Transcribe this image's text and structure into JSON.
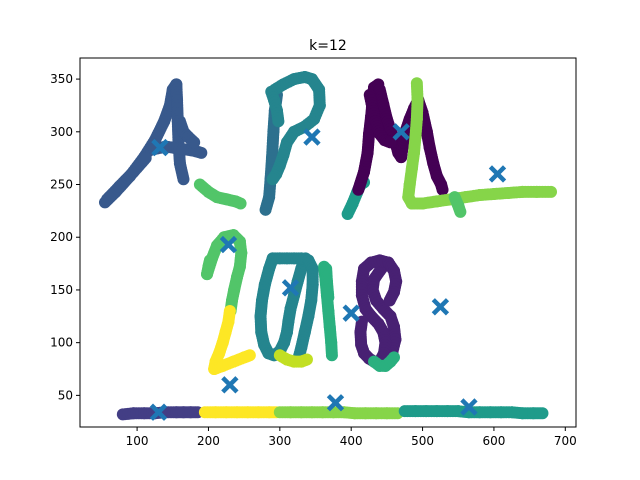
{
  "chart_data": {
    "type": "scatter",
    "title": "k=12",
    "xlabel": "",
    "ylabel": "",
    "xlim": [
      20,
      715
    ],
    "ylim": [
      20,
      370
    ],
    "xticks": [
      100,
      200,
      300,
      400,
      500,
      600,
      700
    ],
    "yticks": [
      50,
      100,
      150,
      200,
      250,
      300,
      350
    ],
    "grid": false,
    "legend": "none",
    "colors": {
      "c0": "#440154",
      "c1": "#482173",
      "c2": "#433e85",
      "c3": "#38598c",
      "c4": "#2d708e",
      "c5": "#25858e",
      "c6": "#1e9b8a",
      "c7": "#2ab07f",
      "c8": "#52c569",
      "c9": "#86d549",
      "c10": "#c2df23",
      "c11": "#fde725",
      "centroid": "#1f77b4"
    },
    "centroids": [
      [
        132,
        285
      ],
      [
        345,
        295
      ],
      [
        470,
        300
      ],
      [
        605,
        260
      ],
      [
        228,
        193
      ],
      [
        315,
        152
      ],
      [
        400,
        128
      ],
      [
        525,
        134
      ],
      [
        230,
        60
      ],
      [
        130,
        34
      ],
      [
        378,
        43
      ],
      [
        565,
        39
      ]
    ],
    "strokes": [
      {
        "color": "c3",
        "points": [
          [
            55,
            233
          ],
          [
            70,
            243
          ],
          [
            90,
            258
          ],
          [
            110,
            276
          ],
          [
            125,
            292
          ],
          [
            138,
            310
          ],
          [
            146,
            325
          ],
          [
            150,
            340
          ],
          [
            155,
            345
          ]
        ]
      },
      {
        "color": "c3",
        "points": [
          [
            155,
            345
          ],
          [
            156,
            330
          ],
          [
            157,
            310
          ],
          [
            158,
            290
          ],
          [
            160,
            270
          ],
          [
            165,
            255
          ]
        ]
      },
      {
        "color": "c3",
        "points": [
          [
            120,
            283
          ],
          [
            140,
            286
          ],
          [
            160,
            284
          ],
          [
            180,
            282
          ],
          [
            190,
            280
          ]
        ]
      },
      {
        "color": "c3",
        "points": [
          [
            160,
            310
          ],
          [
            165,
            300
          ],
          [
            172,
            295
          ],
          [
            180,
            290
          ]
        ]
      },
      {
        "color": "c3",
        "points": [
          [
            58,
            236
          ],
          [
            75,
            248
          ],
          [
            95,
            262
          ],
          [
            112,
            275
          ]
        ]
      },
      {
        "color": "c8",
        "points": [
          [
            188,
            250
          ],
          [
            200,
            243
          ],
          [
            212,
            238
          ],
          [
            225,
            236
          ],
          [
            238,
            234
          ],
          [
            245,
            232
          ]
        ]
      },
      {
        "color": "c4",
        "points": [
          [
            280,
            226
          ],
          [
            285,
            238
          ],
          [
            287,
            255
          ],
          [
            289,
            275
          ],
          [
            291,
            300
          ],
          [
            293,
            320
          ],
          [
            296,
            335
          ]
        ]
      },
      {
        "color": "c5",
        "points": [
          [
            293,
            340
          ],
          [
            305,
            345
          ],
          [
            320,
            350
          ],
          [
            335,
            352
          ],
          [
            345,
            350
          ],
          [
            355,
            340
          ],
          [
            356,
            325
          ],
          [
            348,
            312
          ],
          [
            335,
            305
          ],
          [
            320,
            300
          ],
          [
            310,
            290
          ],
          [
            305,
            278
          ],
          [
            300,
            268
          ],
          [
            295,
            260
          ],
          [
            290,
            255
          ]
        ]
      },
      {
        "color": "c5",
        "points": [
          [
            288,
            338
          ],
          [
            292,
            330
          ],
          [
            296,
            320
          ],
          [
            298,
            310
          ]
        ]
      },
      {
        "color": "c6",
        "points": [
          [
            395,
            222
          ],
          [
            402,
            232
          ],
          [
            408,
            242
          ],
          [
            413,
            250
          ],
          [
            418,
            252
          ]
        ]
      },
      {
        "color": "c0",
        "points": [
          [
            410,
            245
          ],
          [
            418,
            262
          ],
          [
            423,
            280
          ],
          [
            425,
            298
          ],
          [
            428,
            315
          ],
          [
            430,
            330
          ],
          [
            432,
            342
          ],
          [
            438,
            345
          ]
        ]
      },
      {
        "color": "c0",
        "points": [
          [
            440,
            340
          ],
          [
            445,
            326
          ],
          [
            450,
            312
          ],
          [
            456,
            300
          ],
          [
            462,
            290
          ],
          [
            466,
            280
          ],
          [
            470,
            276
          ],
          [
            473,
            290
          ],
          [
            476,
            300
          ]
        ]
      },
      {
        "color": "c0",
        "points": [
          [
            476,
            300
          ],
          [
            482,
            312
          ],
          [
            488,
            322
          ],
          [
            494,
            330
          ],
          [
            500,
            318
          ],
          [
            506,
            300
          ],
          [
            510,
            285
          ],
          [
            515,
            270
          ],
          [
            520,
            258
          ],
          [
            526,
            250
          ],
          [
            528,
            245
          ]
        ]
      },
      {
        "color": "c0",
        "points": [
          [
            426,
            335
          ],
          [
            430,
            322
          ],
          [
            434,
            310
          ],
          [
            440,
            298
          ],
          [
            447,
            292
          ],
          [
            455,
            290
          ]
        ]
      },
      {
        "color": "c9",
        "points": [
          [
            492,
            346
          ],
          [
            493,
            330
          ],
          [
            492,
            312
          ],
          [
            490,
            295
          ],
          [
            488,
            280
          ],
          [
            485,
            265
          ],
          [
            482,
            250
          ],
          [
            480,
            238
          ],
          [
            485,
            232
          ],
          [
            500,
            232
          ],
          [
            520,
            234
          ],
          [
            540,
            236
          ],
          [
            560,
            238
          ],
          [
            580,
            240
          ],
          [
            600,
            241
          ],
          [
            620,
            242
          ],
          [
            640,
            243
          ],
          [
            660,
            243
          ],
          [
            680,
            243
          ]
        ]
      },
      {
        "color": "c8",
        "points": [
          [
            545,
            238
          ],
          [
            550,
            230
          ],
          [
            553,
            224
          ]
        ]
      },
      {
        "color": "c8",
        "points": [
          [
            198,
            165
          ],
          [
            205,
            180
          ],
          [
            212,
            192
          ],
          [
            222,
            200
          ],
          [
            235,
            202
          ],
          [
            244,
            196
          ],
          [
            246,
            185
          ],
          [
            244,
            172
          ],
          [
            240,
            162
          ],
          [
            236,
            150
          ],
          [
            233,
            140
          ],
          [
            231,
            130
          ]
        ]
      },
      {
        "color": "c8",
        "points": [
          [
            198,
            165
          ],
          [
            200,
            172
          ],
          [
            202,
            178
          ]
        ]
      },
      {
        "color": "c11",
        "points": [
          [
            230,
            130
          ],
          [
            228,
            120
          ],
          [
            224,
            110
          ],
          [
            220,
            100
          ],
          [
            215,
            90
          ],
          [
            210,
            82
          ],
          [
            208,
            75
          ],
          [
            220,
            78
          ],
          [
            235,
            82
          ],
          [
            250,
            86
          ],
          [
            258,
            88
          ]
        ]
      },
      {
        "color": "c5",
        "points": [
          [
            290,
            180
          ],
          [
            285,
            170
          ],
          [
            279,
            155
          ],
          [
            275,
            140
          ],
          [
            273,
            125
          ],
          [
            274,
            110
          ],
          [
            278,
            98
          ],
          [
            284,
            90
          ],
          [
            292,
            88
          ]
        ]
      },
      {
        "color": "c5",
        "points": [
          [
            292,
            88
          ],
          [
            300,
            92
          ],
          [
            306,
            100
          ],
          [
            310,
            110
          ],
          [
            312,
            120
          ],
          [
            315,
            132
          ],
          [
            320,
            145
          ],
          [
            325,
            158
          ],
          [
            330,
            170
          ],
          [
            334,
            178
          ],
          [
            336,
            180
          ]
        ]
      },
      {
        "color": "c5",
        "points": [
          [
            290,
            180
          ],
          [
            300,
            180
          ],
          [
            310,
            180
          ],
          [
            320,
            180
          ],
          [
            330,
            180
          ],
          [
            340,
            178
          ],
          [
            346,
            170
          ],
          [
            346,
            155
          ],
          [
            344,
            140
          ],
          [
            340,
            125
          ],
          [
            335,
            110
          ],
          [
            330,
            95
          ],
          [
            326,
            85
          ]
        ]
      },
      {
        "color": "c10",
        "points": [
          [
            300,
            88
          ],
          [
            310,
            84
          ],
          [
            320,
            82
          ],
          [
            330,
            82
          ],
          [
            338,
            84
          ]
        ]
      },
      {
        "color": "c7",
        "points": [
          [
            362,
            172
          ],
          [
            364,
            160
          ],
          [
            366,
            145
          ],
          [
            368,
            130
          ],
          [
            370,
            115
          ],
          [
            372,
            100
          ],
          [
            373,
            88
          ]
        ]
      },
      {
        "color": "c7",
        "points": [
          [
            365,
            170
          ],
          [
            366,
            158
          ],
          [
            368,
            143
          ]
        ]
      },
      {
        "color": "c1",
        "points": [
          [
            448,
            175
          ],
          [
            440,
            168
          ],
          [
            432,
            160
          ],
          [
            430,
            150
          ],
          [
            435,
            140
          ],
          [
            445,
            132
          ],
          [
            455,
            125
          ],
          [
            460,
            115
          ],
          [
            462,
            103
          ],
          [
            458,
            92
          ],
          [
            450,
            84
          ],
          [
            440,
            80
          ]
        ]
      },
      {
        "color": "c1",
        "points": [
          [
            418,
            170
          ],
          [
            415,
            158
          ],
          [
            415,
            145
          ],
          [
            420,
            132
          ],
          [
            428,
            125
          ],
          [
            438,
            118
          ],
          [
            445,
            110
          ],
          [
            448,
            100
          ],
          [
            446,
            90
          ],
          [
            440,
            82
          ]
        ]
      },
      {
        "color": "c1",
        "points": [
          [
            415,
            120
          ],
          [
            413,
            110
          ],
          [
            414,
            98
          ],
          [
            418,
            90
          ],
          [
            425,
            85
          ],
          [
            432,
            82
          ]
        ]
      },
      {
        "color": "c1",
        "points": [
          [
            418,
            170
          ],
          [
            428,
            176
          ],
          [
            440,
            178
          ],
          [
            452,
            176
          ],
          [
            460,
            168
          ],
          [
            463,
            158
          ],
          [
            460,
            148
          ],
          [
            454,
            140
          ]
        ]
      },
      {
        "color": "c7",
        "points": [
          [
            432,
            82
          ],
          [
            440,
            78
          ],
          [
            448,
            78
          ],
          [
            455,
            82
          ],
          [
            460,
            86
          ]
        ]
      },
      {
        "color": "c2",
        "points": [
          [
            80,
            32
          ],
          [
            95,
            33
          ],
          [
            110,
            33
          ],
          [
            125,
            33
          ],
          [
            140,
            34
          ],
          [
            155,
            34
          ],
          [
            165,
            34
          ],
          [
            175,
            34
          ],
          [
            185,
            34
          ]
        ]
      },
      {
        "color": "c11",
        "points": [
          [
            195,
            34
          ],
          [
            210,
            34
          ],
          [
            225,
            34
          ],
          [
            240,
            34
          ],
          [
            255,
            34
          ],
          [
            270,
            34
          ],
          [
            285,
            34
          ],
          [
            295,
            34
          ]
        ]
      },
      {
        "color": "c9",
        "points": [
          [
            300,
            34
          ],
          [
            315,
            34
          ],
          [
            330,
            34
          ],
          [
            345,
            34
          ],
          [
            360,
            34
          ],
          [
            375,
            34
          ],
          [
            390,
            34
          ],
          [
            405,
            33
          ],
          [
            420,
            33
          ],
          [
            435,
            33
          ],
          [
            450,
            33
          ],
          [
            465,
            33
          ]
        ]
      },
      {
        "color": "c6",
        "points": [
          [
            475,
            35
          ],
          [
            490,
            35
          ],
          [
            505,
            35
          ],
          [
            520,
            35
          ],
          [
            535,
            35
          ],
          [
            550,
            35
          ],
          [
            565,
            34
          ],
          [
            580,
            34
          ],
          [
            595,
            34
          ],
          [
            610,
            34
          ],
          [
            625,
            34
          ],
          [
            640,
            33
          ],
          [
            655,
            33
          ],
          [
            668,
            33
          ]
        ]
      }
    ]
  }
}
